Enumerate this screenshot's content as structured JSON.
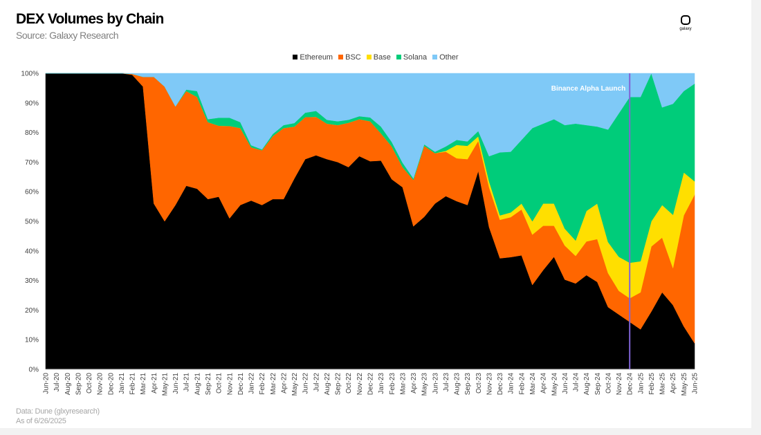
{
  "header": {
    "title": "DEX Volumes by Chain",
    "subtitle": "Source: Galaxy Research",
    "logo_text": "galaxy"
  },
  "footer": {
    "line1": "Data: Dune (glxyresearch)",
    "line2": "As of 6/26/2025"
  },
  "chart_data": {
    "type": "area",
    "stacked": true,
    "normalized": true,
    "title": "DEX Volumes by Chain",
    "xlabel": "",
    "ylabel": "",
    "ylim": [
      0,
      100
    ],
    "yticks": [
      "0%",
      "10%",
      "20%",
      "30%",
      "40%",
      "50%",
      "60%",
      "70%",
      "80%",
      "90%",
      "100%"
    ],
    "legend_position": "top-center",
    "grid": false,
    "categories": [
      "Jun-20",
      "Jul-20",
      "Aug-20",
      "Sep-20",
      "Oct-20",
      "Nov-20",
      "Dec-20",
      "Jan-21",
      "Feb-21",
      "Mar-21",
      "Apr-21",
      "May-21",
      "Jun-21",
      "Jul-21",
      "Aug-21",
      "Sep-21",
      "Oct-21",
      "Nov-21",
      "Dec-21",
      "Jan-22",
      "Feb-22",
      "Mar-22",
      "Apr-22",
      "May-22",
      "Jun-22",
      "Jul-22",
      "Aug-22",
      "Sep-22",
      "Oct-22",
      "Nov-22",
      "Dec-22",
      "Jan-23",
      "Feb-23",
      "Mar-23",
      "Apr-23",
      "May-23",
      "Jun-23",
      "Jul-23",
      "Aug-23",
      "Sep-23",
      "Oct-23",
      "Nov-23",
      "Dec-23",
      "Jan-24",
      "Feb-24",
      "Mar-24",
      "Apr-24",
      "May-24",
      "Jun-24",
      "Jul-24",
      "Aug-24",
      "Sep-24",
      "Oct-24",
      "Nov-24",
      "Dec-24",
      "Jan-25",
      "Feb-25",
      "Mar-25",
      "Apr-25",
      "May-25",
      "Jun-25"
    ],
    "series": [
      {
        "name": "Ethereum",
        "color": "#000000",
        "values": [
          100,
          100,
          100,
          100,
          100,
          100,
          100,
          100,
          99.5,
          95.5,
          56,
          50,
          55.5,
          62,
          61,
          57.5,
          58.3,
          51,
          55.5,
          57,
          55.5,
          57.5,
          57.5,
          64.5,
          71,
          72.3,
          71,
          70,
          68.3,
          72,
          70.3,
          70.5,
          64.2,
          61.5,
          48.3,
          51.5,
          56,
          58.5,
          56.8,
          55.5,
          67,
          48,
          37.5,
          37.9,
          38.5,
          28.5,
          33.5,
          38,
          30.3,
          29,
          31.8,
          29.5,
          21,
          18.5,
          16,
          13.5,
          19.5,
          26,
          21.7,
          14.5,
          8.8
        ]
      },
      {
        "name": "BSC",
        "color": "#ff6600",
        "values": [
          0,
          0,
          0,
          0,
          0,
          0,
          0,
          0,
          0.3,
          3.3,
          42.8,
          45.5,
          33.3,
          32,
          31,
          26,
          24,
          31.2,
          26,
          18,
          18.5,
          21.3,
          24,
          17.5,
          14.2,
          13,
          12,
          12.5,
          15,
          12.5,
          13.5,
          9.2,
          11.1,
          6.8,
          15.7,
          24,
          17,
          15,
          14.5,
          15.5,
          10.2,
          13.5,
          13,
          13.5,
          15.5,
          17,
          15,
          10.5,
          11.5,
          9.3,
          11.4,
          14.5,
          11.5,
          8,
          8,
          12.5,
          22,
          18.5,
          12.5,
          37.5,
          50.2
        ]
      },
      {
        "name": "Base",
        "color": "#ffdf00",
        "values": [
          0,
          0,
          0,
          0,
          0,
          0,
          0,
          0,
          0,
          0,
          0,
          0,
          0,
          0,
          0,
          0,
          0,
          0,
          0,
          0,
          0,
          0,
          0,
          0,
          0,
          0,
          0,
          0,
          0,
          0,
          0,
          0,
          0,
          0,
          0,
          0,
          0,
          0.3,
          4.5,
          4.5,
          1.5,
          2,
          1.5,
          1.6,
          2,
          4.5,
          7.5,
          7.5,
          5.7,
          5.2,
          10.3,
          12,
          10.5,
          11.5,
          12,
          10.5,
          8.5,
          11,
          18,
          14.5,
          4.5
        ]
      },
      {
        "name": "Solana",
        "color": "#00cc7a",
        "values": [
          0,
          0,
          0,
          0,
          0,
          0,
          0,
          0,
          0,
          0,
          0,
          0,
          0,
          0.5,
          2,
          1,
          2.7,
          2.8,
          2,
          0.7,
          0.3,
          0.7,
          1,
          1.2,
          1.5,
          2,
          1.3,
          1.3,
          1,
          1,
          1.3,
          2.3,
          1.5,
          1.5,
          0.5,
          0.5,
          0.5,
          1.5,
          1.7,
          1.5,
          1.8,
          8.5,
          21.3,
          20.5,
          21.5,
          31.5,
          27,
          28.5,
          35,
          39.5,
          29,
          26,
          38,
          48.5,
          56,
          55.5,
          51,
          33,
          37.5,
          27.5,
          33
        ]
      },
      {
        "name": "Other",
        "color": "#7fc9f7",
        "values": [
          0,
          0,
          0,
          0,
          0,
          0,
          0,
          0,
          0.2,
          1.2,
          1.2,
          4.5,
          11.2,
          5.5,
          6,
          15.5,
          15,
          15,
          16.5,
          24.3,
          25.7,
          20.5,
          17.5,
          16.8,
          13.3,
          12.7,
          15.7,
          16.2,
          15.7,
          14.5,
          14.9,
          18,
          23.2,
          30.2,
          35.5,
          24,
          26.5,
          24.7,
          22.5,
          23,
          19.5,
          28,
          26.7,
          26.5,
          22.5,
          18.5,
          17,
          15.5,
          17.5,
          17,
          17.5,
          18,
          19,
          13.5,
          8,
          8,
          9,
          11.5,
          10.3,
          6,
          3.5
        ]
      }
    ],
    "annotations": [
      {
        "text": "Binance Alpha Launch",
        "x": "Dec-24",
        "line_color": "#8064d6"
      }
    ]
  }
}
